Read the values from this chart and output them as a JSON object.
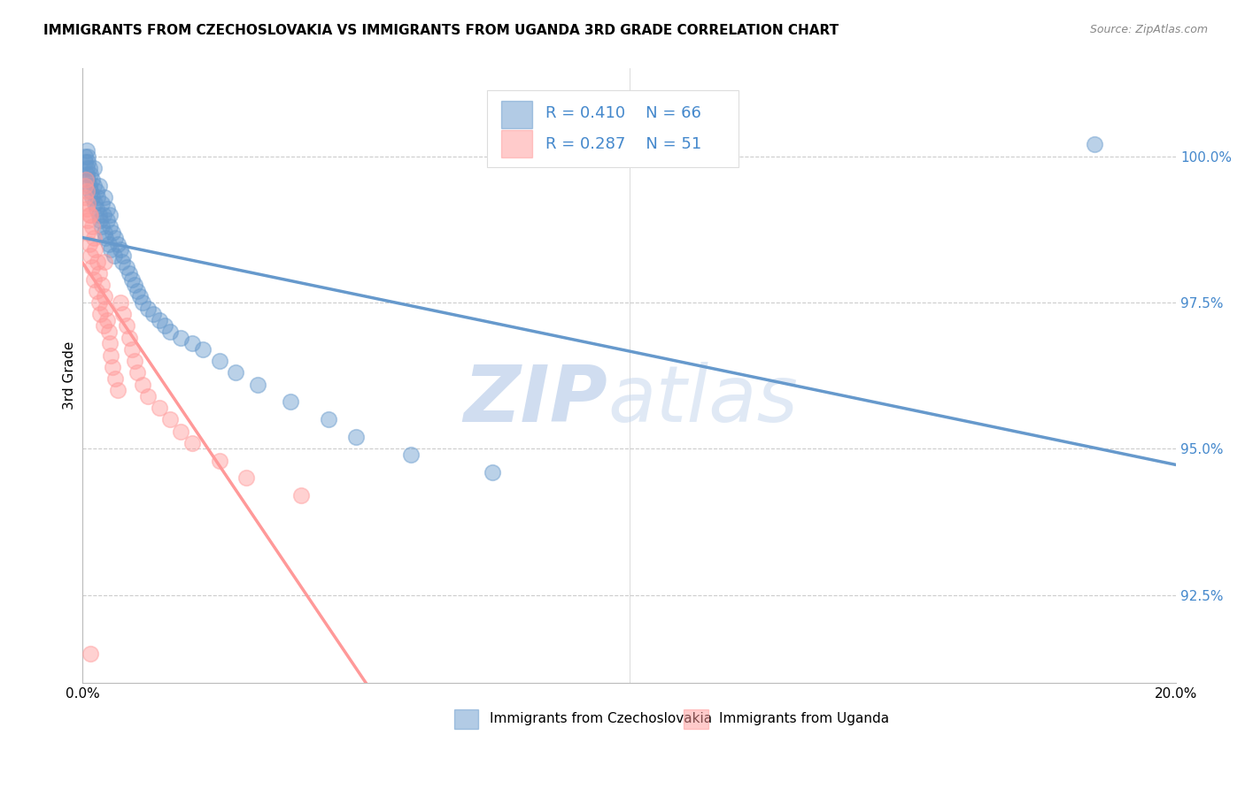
{
  "title": "IMMIGRANTS FROM CZECHOSLOVAKIA VS IMMIGRANTS FROM UGANDA 3RD GRADE CORRELATION CHART",
  "source": "Source: ZipAtlas.com",
  "ylabel": "3rd Grade",
  "y_ticks": [
    92.5,
    95.0,
    97.5,
    100.0
  ],
  "y_tick_labels": [
    "92.5%",
    "95.0%",
    "97.5%",
    "100.0%"
  ],
  "xlim": [
    0.0,
    20.0
  ],
  "ylim": [
    91.0,
    101.5
  ],
  "color_czech": "#6699CC",
  "color_uganda": "#FF9999",
  "R_czech": 0.41,
  "N_czech": 66,
  "R_uganda": 0.287,
  "N_uganda": 51,
  "legend_label_czech": "Immigrants from Czechoslovakia",
  "legend_label_uganda": "Immigrants from Uganda",
  "czech_x": [
    0.05,
    0.05,
    0.07,
    0.08,
    0.08,
    0.1,
    0.1,
    0.1,
    0.12,
    0.13,
    0.15,
    0.15,
    0.17,
    0.18,
    0.2,
    0.2,
    0.22,
    0.25,
    0.25,
    0.27,
    0.3,
    0.3,
    0.32,
    0.35,
    0.35,
    0.38,
    0.4,
    0.4,
    0.42,
    0.45,
    0.45,
    0.48,
    0.5,
    0.5,
    0.52,
    0.55,
    0.58,
    0.6,
    0.65,
    0.7,
    0.72,
    0.75,
    0.8,
    0.85,
    0.9,
    0.95,
    1.0,
    1.05,
    1.1,
    1.2,
    1.3,
    1.4,
    1.5,
    1.6,
    1.8,
    2.0,
    2.2,
    2.5,
    2.8,
    3.2,
    3.8,
    4.5,
    5.0,
    6.0,
    7.5,
    18.5
  ],
  "czech_y": [
    99.9,
    100.0,
    99.8,
    100.1,
    99.7,
    99.6,
    99.9,
    100.0,
    99.5,
    99.8,
    99.7,
    99.4,
    99.6,
    99.3,
    99.5,
    99.8,
    99.2,
    99.4,
    99.1,
    99.3,
    99.0,
    99.5,
    98.9,
    99.2,
    98.8,
    99.0,
    98.7,
    99.3,
    98.6,
    98.9,
    99.1,
    98.5,
    98.8,
    99.0,
    98.4,
    98.7,
    98.3,
    98.6,
    98.5,
    98.4,
    98.2,
    98.3,
    98.1,
    98.0,
    97.9,
    97.8,
    97.7,
    97.6,
    97.5,
    97.4,
    97.3,
    97.2,
    97.1,
    97.0,
    96.9,
    96.8,
    96.7,
    96.5,
    96.3,
    96.1,
    95.8,
    95.5,
    95.2,
    94.9,
    94.6,
    100.2
  ],
  "uganda_x": [
    0.04,
    0.05,
    0.06,
    0.07,
    0.08,
    0.09,
    0.1,
    0.1,
    0.12,
    0.13,
    0.15,
    0.15,
    0.17,
    0.18,
    0.2,
    0.2,
    0.22,
    0.25,
    0.28,
    0.3,
    0.3,
    0.32,
    0.35,
    0.38,
    0.4,
    0.4,
    0.42,
    0.45,
    0.48,
    0.5,
    0.52,
    0.55,
    0.6,
    0.65,
    0.7,
    0.75,
    0.8,
    0.85,
    0.9,
    0.95,
    1.0,
    1.1,
    1.2,
    1.4,
    1.6,
    1.8,
    2.0,
    2.5,
    3.0,
    4.0,
    0.15
  ],
  "uganda_y": [
    99.5,
    99.3,
    99.6,
    99.1,
    99.4,
    98.9,
    99.2,
    98.7,
    99.0,
    98.5,
    99.0,
    98.3,
    98.8,
    98.1,
    98.6,
    97.9,
    98.4,
    97.7,
    98.2,
    97.5,
    98.0,
    97.3,
    97.8,
    97.1,
    97.6,
    98.2,
    97.4,
    97.2,
    97.0,
    96.8,
    96.6,
    96.4,
    96.2,
    96.0,
    97.5,
    97.3,
    97.1,
    96.9,
    96.7,
    96.5,
    96.3,
    96.1,
    95.9,
    95.7,
    95.5,
    95.3,
    95.1,
    94.8,
    94.5,
    94.2,
    91.5
  ]
}
